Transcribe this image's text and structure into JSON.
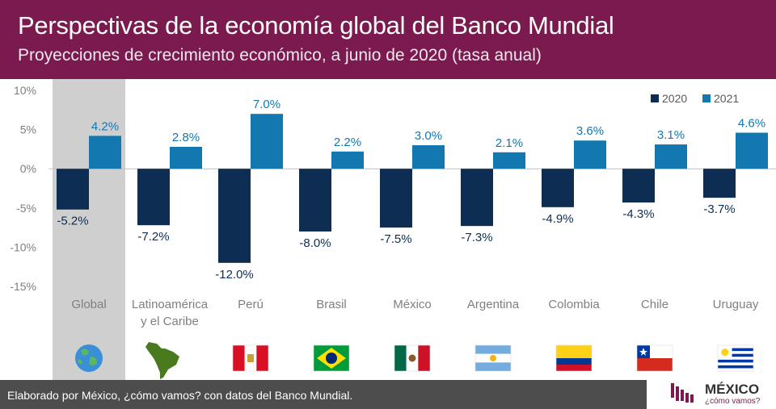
{
  "header": {
    "title": "Perspectivas de la economía global del Banco Mundial",
    "subtitle": "Proyecciones de crecimiento económico, a junio de 2020 (tasa anual)"
  },
  "colors": {
    "header_bg": "#7a1a4e",
    "series_2020": "#0d2e52",
    "series_2021": "#1478b0",
    "highlight": "#cfcfcf",
    "footer_bg": "#4d4d4d"
  },
  "chart_data": {
    "type": "bar",
    "categories": [
      "Global",
      "Latinoamérica\ny el Caribe",
      "Perú",
      "Brasil",
      "México",
      "Argentina",
      "Colombia",
      "Chile",
      "Uruguay"
    ],
    "series": [
      {
        "name": "2020",
        "values": [
          -5.2,
          -7.2,
          -12.0,
          -8.0,
          -7.5,
          -7.3,
          -4.9,
          -4.3,
          -3.7
        ],
        "labels": [
          "-5.2%",
          "-7.2%",
          "-12.0%",
          "-8.0%",
          "-7.5%",
          "-7.3%",
          "-4.9%",
          "-4.3%",
          "-3.7%"
        ]
      },
      {
        "name": "2021",
        "values": [
          4.2,
          2.8,
          7.0,
          2.2,
          3.0,
          2.1,
          3.6,
          3.1,
          4.6
        ],
        "labels": [
          "4.2%",
          "2.8%",
          "7.0%",
          "2.2%",
          "3.0%",
          "2.1%",
          "3.6%",
          "3.1%",
          "4.6%"
        ]
      }
    ],
    "yticks": [
      10,
      5,
      0,
      -5,
      -10,
      -15
    ],
    "ytick_labels": [
      "10%",
      "5%",
      "0%",
      "-5%",
      "-10%",
      "-15%"
    ],
    "ylim": [
      -15,
      10
    ],
    "highlighted_category": "Global",
    "legend_position": "top-right",
    "icons": [
      "globe-icon",
      "latin-america-map-icon",
      "peru-flag-icon",
      "brazil-flag-icon",
      "mexico-flag-icon",
      "argentina-flag-icon",
      "colombia-flag-icon",
      "chile-flag-icon",
      "uruguay-flag-icon"
    ]
  },
  "footer": {
    "source": "Elaborado por México, ¿cómo vamos? con datos del Banco Mundial.",
    "logo_name": "MÉXICO",
    "logo_tagline": "¿cómo vamos?"
  }
}
